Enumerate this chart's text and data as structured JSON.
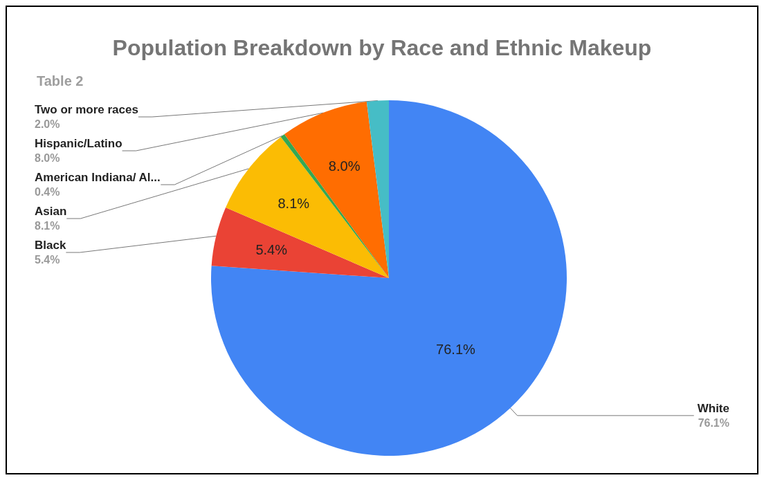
{
  "chart_data": {
    "type": "pie",
    "title": "Population Breakdown by Race and Ethnic Makeup",
    "subtitle": "Table 2",
    "categories": [
      "White",
      "Black",
      "Asian",
      "American Indiana/ Al...",
      "Hispanic/Latino",
      "Two or more races"
    ],
    "values": [
      76.1,
      5.4,
      8.1,
      0.4,
      8.0,
      2.0
    ],
    "colors": [
      "#4285f4",
      "#ea4335",
      "#fbbc04",
      "#34a853",
      "#ff6d01",
      "#46bdc6"
    ],
    "value_labels": [
      "76.1%",
      "5.4%",
      "8.1%",
      "0.4%",
      "8.0%",
      "2.0%"
    ],
    "legend": false
  }
}
